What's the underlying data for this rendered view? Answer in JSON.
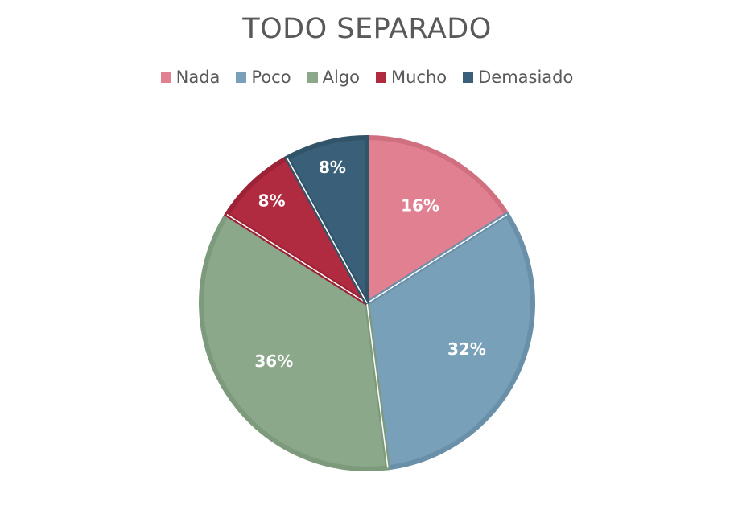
{
  "chart_data": {
    "type": "pie",
    "title": "TODO SEPARADO",
    "categories": [
      "Nada",
      "Poco",
      "Algo",
      "Mucho",
      "Demasiado"
    ],
    "values": [
      16,
      32,
      36,
      8,
      8
    ],
    "labels": [
      "16%",
      "32%",
      "36%",
      "8%",
      "8%"
    ],
    "colors": [
      "#e08090",
      "#78a0b8",
      "#8ca88a",
      "#b02a40",
      "#3a5f78"
    ],
    "border_colors": [
      "#cf6f80",
      "#6a8fa8",
      "#7e9a7c",
      "#9e2236",
      "#325468"
    ],
    "legend": "top",
    "start_angle_deg": 0,
    "direction": "clockwise"
  }
}
